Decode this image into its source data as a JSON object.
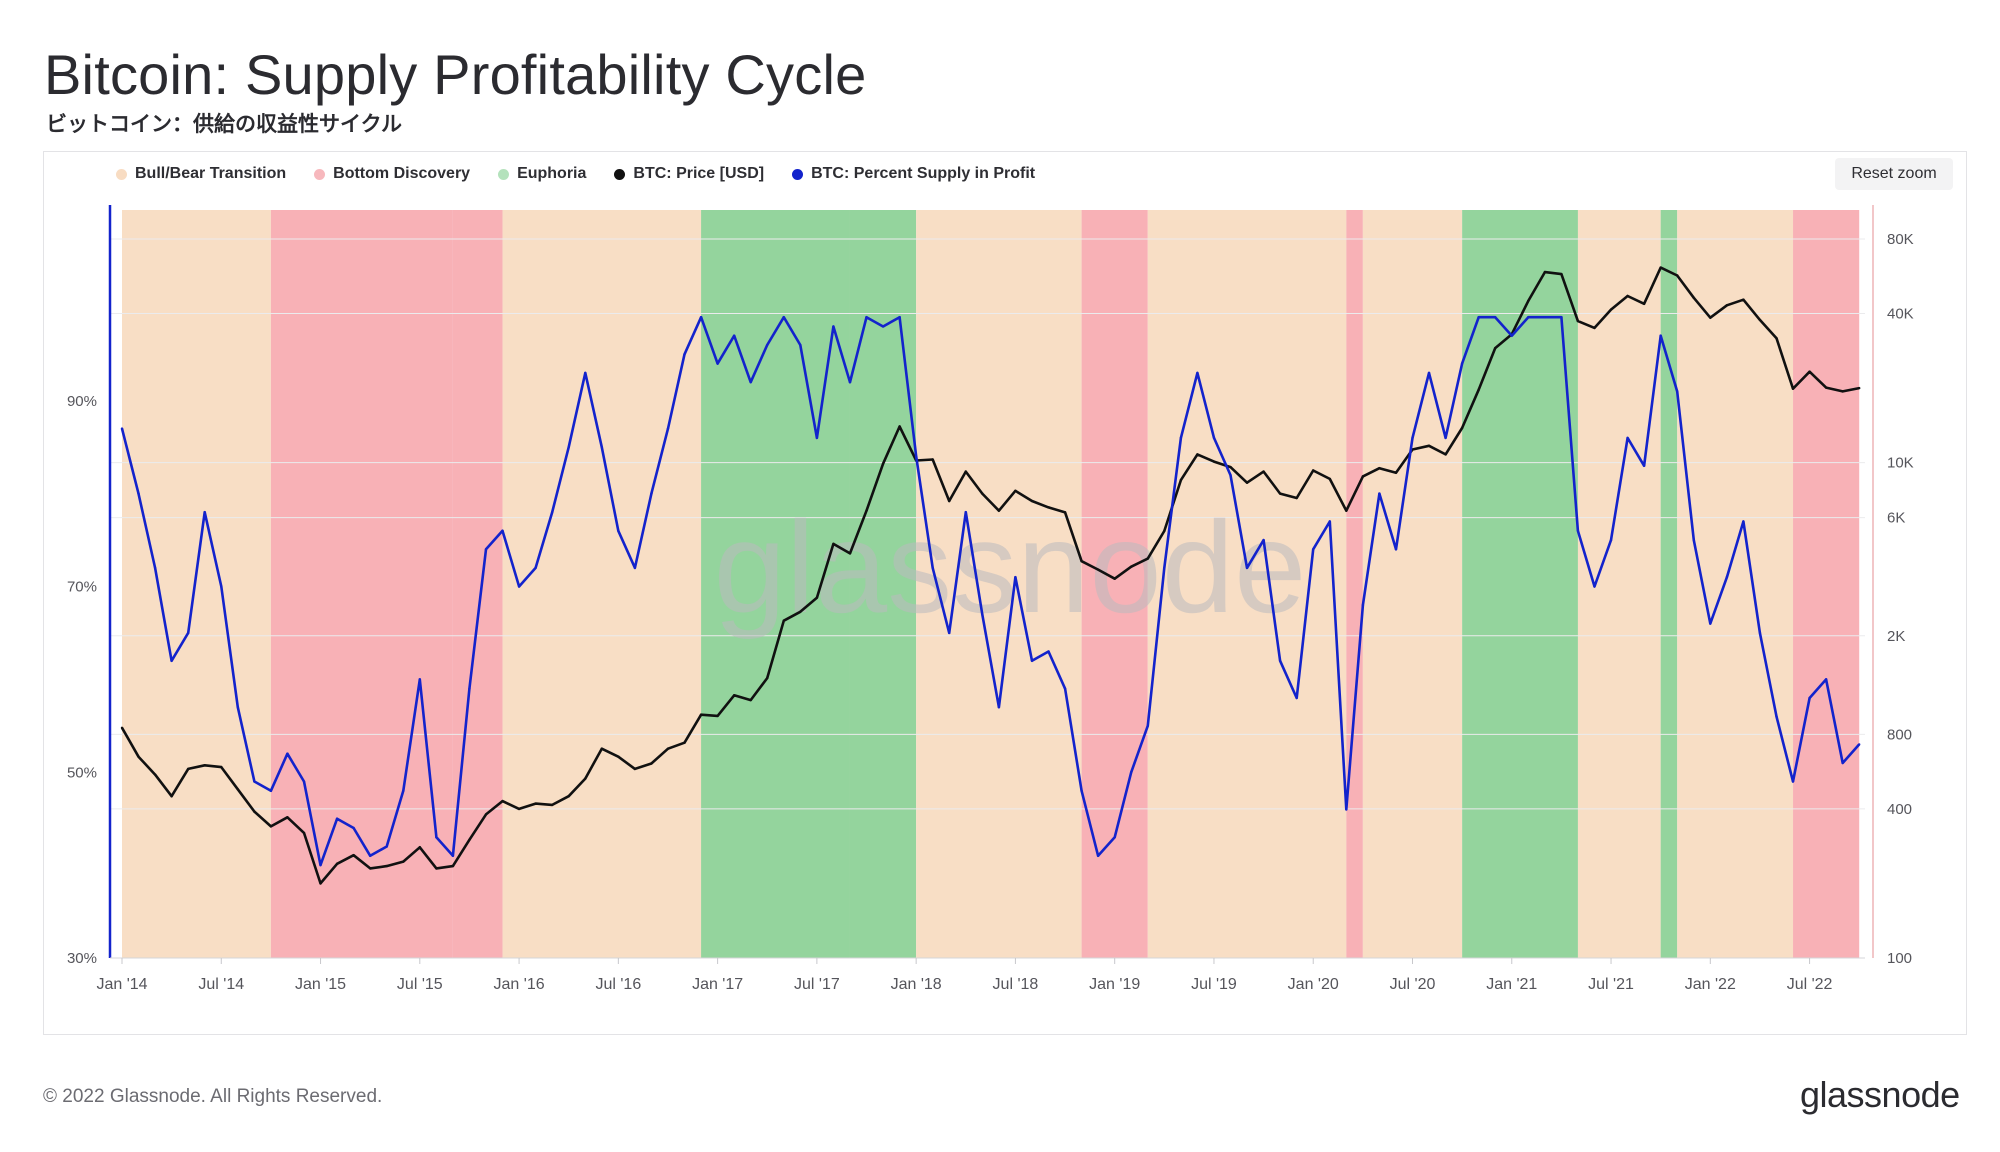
{
  "header": {
    "title": "Bitcoin: Supply Profitability Cycle",
    "subtitle": "ビットコイン：供給の収益性サイクル"
  },
  "legend": [
    {
      "label": "Bull/Bear Transition",
      "color": "#f8dcc2"
    },
    {
      "label": "Bottom Discovery",
      "color": "#f7b8bd"
    },
    {
      "label": "Euphoria",
      "color": "#b4e2bc"
    },
    {
      "label": "BTC: Price [USD]",
      "color": "#111111"
    },
    {
      "label": "BTC: Percent Supply in Profit",
      "color": "#1323cc"
    }
  ],
  "reset_zoom_label": "Reset zoom",
  "watermark": "glassnode",
  "footer": {
    "copyright": "© 2022 Glassnode. All Rights Reserved.",
    "logo": "glassnode"
  },
  "colors": {
    "transition": "#f8dcc2",
    "bottom": "#f7a9ae",
    "euphoria": "#88cf92",
    "price": "#111111",
    "profit": "#1323cc",
    "grid": "#ebebed",
    "axis_text": "#55555b"
  },
  "chart_data": {
    "type": "line",
    "x_range": [
      "2014-01",
      "2022-10"
    ],
    "x_tick_labels": [
      "Jan '14",
      "Jul '14",
      "Jan '15",
      "Jul '15",
      "Jan '16",
      "Jul '16",
      "Jan '17",
      "Jul '17",
      "Jan '18",
      "Jul '18",
      "Jan '19",
      "Jul '19",
      "Jan '20",
      "Jul '20",
      "Jan '21",
      "Jul '21",
      "Jan '22",
      "Jul '22"
    ],
    "y_left": {
      "label": "",
      "range": [
        30,
        110
      ],
      "ticks": [
        30,
        50,
        70,
        90
      ],
      "tick_labels": [
        "30%",
        "50%",
        "70%",
        "90%"
      ]
    },
    "y_right": {
      "label": "",
      "scale": "log",
      "range": [
        100,
        100000
      ],
      "ticks": [
        100,
        400,
        800,
        2000,
        6000,
        10000,
        40000,
        80000
      ],
      "tick_labels": [
        "100",
        "400",
        "800",
        "2K",
        "6K",
        "10K",
        "40K",
        "80K"
      ]
    },
    "regimes": [
      {
        "start": "2014-01",
        "end": "2014-10",
        "type": "transition"
      },
      {
        "start": "2014-10",
        "end": "2015-09",
        "type": "bottom"
      },
      {
        "start": "2015-09",
        "end": "2015-12",
        "type": "bottom"
      },
      {
        "start": "2015-12",
        "end": "2016-12",
        "type": "transition"
      },
      {
        "start": "2016-12",
        "end": "2017-09",
        "type": "euphoria"
      },
      {
        "start": "2017-09",
        "end": "2018-01",
        "type": "euphoria"
      },
      {
        "start": "2018-01",
        "end": "2018-11",
        "type": "transition"
      },
      {
        "start": "2018-11",
        "end": "2019-03",
        "type": "bottom"
      },
      {
        "start": "2019-03",
        "end": "2020-03",
        "type": "transition"
      },
      {
        "start": "2020-03",
        "end": "2020-04",
        "type": "bottom"
      },
      {
        "start": "2020-04",
        "end": "2020-10",
        "type": "transition"
      },
      {
        "start": "2020-10",
        "end": "2021-05",
        "type": "euphoria"
      },
      {
        "start": "2021-05",
        "end": "2021-10",
        "type": "transition"
      },
      {
        "start": "2021-10",
        "end": "2021-11",
        "type": "euphoria"
      },
      {
        "start": "2021-11",
        "end": "2022-06",
        "type": "transition"
      },
      {
        "start": "2022-06",
        "end": "2022-10",
        "type": "bottom"
      }
    ],
    "series": [
      {
        "name": "BTC: Price [USD]",
        "axis": "right",
        "points": [
          [
            "2014-01",
            850
          ],
          [
            "2014-02",
            650
          ],
          [
            "2014-03",
            550
          ],
          [
            "2014-04",
            450
          ],
          [
            "2014-05",
            580
          ],
          [
            "2014-06",
            600
          ],
          [
            "2014-07",
            590
          ],
          [
            "2014-08",
            480
          ],
          [
            "2014-09",
            390
          ],
          [
            "2014-10",
            340
          ],
          [
            "2014-11",
            370
          ],
          [
            "2014-12",
            320
          ],
          [
            "2015-01",
            200
          ],
          [
            "2015-02",
            240
          ],
          [
            "2015-03",
            260
          ],
          [
            "2015-04",
            230
          ],
          [
            "2015-05",
            235
          ],
          [
            "2015-06",
            245
          ],
          [
            "2015-07",
            280
          ],
          [
            "2015-08",
            230
          ],
          [
            "2015-09",
            235
          ],
          [
            "2015-10",
            300
          ],
          [
            "2015-11",
            380
          ],
          [
            "2015-12",
            430
          ],
          [
            "2016-01",
            400
          ],
          [
            "2016-02",
            420
          ],
          [
            "2016-03",
            415
          ],
          [
            "2016-04",
            450
          ],
          [
            "2016-05",
            530
          ],
          [
            "2016-06",
            700
          ],
          [
            "2016-07",
            650
          ],
          [
            "2016-08",
            580
          ],
          [
            "2016-09",
            610
          ],
          [
            "2016-10",
            700
          ],
          [
            "2016-11",
            740
          ],
          [
            "2016-12",
            960
          ],
          [
            "2017-01",
            950
          ],
          [
            "2017-02",
            1150
          ],
          [
            "2017-03",
            1100
          ],
          [
            "2017-04",
            1350
          ],
          [
            "2017-05",
            2300
          ],
          [
            "2017-06",
            2500
          ],
          [
            "2017-07",
            2850
          ],
          [
            "2017-08",
            4700
          ],
          [
            "2017-09",
            4300
          ],
          [
            "2017-10",
            6400
          ],
          [
            "2017-11",
            9900
          ],
          [
            "2017-12",
            14000
          ],
          [
            "2018-01",
            10200
          ],
          [
            "2018-02",
            10300
          ],
          [
            "2018-03",
            7000
          ],
          [
            "2018-04",
            9200
          ],
          [
            "2018-05",
            7500
          ],
          [
            "2018-06",
            6400
          ],
          [
            "2018-07",
            7700
          ],
          [
            "2018-08",
            7000
          ],
          [
            "2018-09",
            6600
          ],
          [
            "2018-10",
            6300
          ],
          [
            "2018-11",
            4000
          ],
          [
            "2018-12",
            3700
          ],
          [
            "2019-01",
            3400
          ],
          [
            "2019-02",
            3800
          ],
          [
            "2019-03",
            4100
          ],
          [
            "2019-04",
            5300
          ],
          [
            "2019-05",
            8500
          ],
          [
            "2019-06",
            10800
          ],
          [
            "2019-07",
            10100
          ],
          [
            "2019-08",
            9600
          ],
          [
            "2019-09",
            8300
          ],
          [
            "2019-10",
            9200
          ],
          [
            "2019-11",
            7500
          ],
          [
            "2019-12",
            7200
          ],
          [
            "2020-01",
            9300
          ],
          [
            "2020-02",
            8600
          ],
          [
            "2020-03",
            6400
          ],
          [
            "2020-04",
            8800
          ],
          [
            "2020-05",
            9500
          ],
          [
            "2020-06",
            9100
          ],
          [
            "2020-07",
            11300
          ],
          [
            "2020-08",
            11700
          ],
          [
            "2020-09",
            10800
          ],
          [
            "2020-10",
            13800
          ],
          [
            "2020-11",
            19700
          ],
          [
            "2020-12",
            29000
          ],
          [
            "2021-01",
            33000
          ],
          [
            "2021-02",
            45000
          ],
          [
            "2021-03",
            58800
          ],
          [
            "2021-04",
            57700
          ],
          [
            "2021-05",
            37300
          ],
          [
            "2021-06",
            35000
          ],
          [
            "2021-07",
            41500
          ],
          [
            "2021-08",
            47100
          ],
          [
            "2021-09",
            43800
          ],
          [
            "2021-10",
            61300
          ],
          [
            "2021-11",
            57000
          ],
          [
            "2021-12",
            46300
          ],
          [
            "2022-01",
            38500
          ],
          [
            "2022-02",
            43200
          ],
          [
            "2022-03",
            45500
          ],
          [
            "2022-04",
            37700
          ],
          [
            "2022-05",
            31800
          ],
          [
            "2022-06",
            19900
          ],
          [
            "2022-07",
            23300
          ],
          [
            "2022-08",
            20100
          ],
          [
            "2022-09",
            19400
          ],
          [
            "2022-10",
            20000
          ]
        ]
      },
      {
        "name": "BTC: Percent Supply in Profit",
        "axis": "left",
        "points": [
          [
            "2014-01",
            87
          ],
          [
            "2014-02",
            80
          ],
          [
            "2014-03",
            72
          ],
          [
            "2014-04",
            62
          ],
          [
            "2014-05",
            65
          ],
          [
            "2014-06",
            78
          ],
          [
            "2014-07",
            70
          ],
          [
            "2014-08",
            57
          ],
          [
            "2014-09",
            49
          ],
          [
            "2014-10",
            48
          ],
          [
            "2014-11",
            52
          ],
          [
            "2014-12",
            49
          ],
          [
            "2015-01",
            40
          ],
          [
            "2015-02",
            45
          ],
          [
            "2015-03",
            44
          ],
          [
            "2015-04",
            41
          ],
          [
            "2015-05",
            42
          ],
          [
            "2015-06",
            48
          ],
          [
            "2015-07",
            60
          ],
          [
            "2015-08",
            43
          ],
          [
            "2015-09",
            41
          ],
          [
            "2015-10",
            59
          ],
          [
            "2015-11",
            74
          ],
          [
            "2015-12",
            76
          ],
          [
            "2016-01",
            70
          ],
          [
            "2016-02",
            72
          ],
          [
            "2016-03",
            78
          ],
          [
            "2016-04",
            85
          ],
          [
            "2016-05",
            93
          ],
          [
            "2016-06",
            85
          ],
          [
            "2016-07",
            76
          ],
          [
            "2016-08",
            72
          ],
          [
            "2016-09",
            80
          ],
          [
            "2016-10",
            87
          ],
          [
            "2016-11",
            95
          ],
          [
            "2016-12",
            99
          ],
          [
            "2017-01",
            94
          ],
          [
            "2017-02",
            97
          ],
          [
            "2017-03",
            92
          ],
          [
            "2017-04",
            96
          ],
          [
            "2017-05",
            99
          ],
          [
            "2017-06",
            96
          ],
          [
            "2017-07",
            86
          ],
          [
            "2017-08",
            98
          ],
          [
            "2017-09",
            92
          ],
          [
            "2017-10",
            99
          ],
          [
            "2017-11",
            98
          ],
          [
            "2017-12",
            99
          ],
          [
            "2018-01",
            84
          ],
          [
            "2018-02",
            72
          ],
          [
            "2018-03",
            65
          ],
          [
            "2018-04",
            78
          ],
          [
            "2018-05",
            67
          ],
          [
            "2018-06",
            57
          ],
          [
            "2018-07",
            71
          ],
          [
            "2018-08",
            62
          ],
          [
            "2018-09",
            63
          ],
          [
            "2018-10",
            59
          ],
          [
            "2018-11",
            48
          ],
          [
            "2018-12",
            41
          ],
          [
            "2019-01",
            43
          ],
          [
            "2019-02",
            50
          ],
          [
            "2019-03",
            55
          ],
          [
            "2019-04",
            72
          ],
          [
            "2019-05",
            86
          ],
          [
            "2019-06",
            93
          ],
          [
            "2019-07",
            86
          ],
          [
            "2019-08",
            82
          ],
          [
            "2019-09",
            72
          ],
          [
            "2019-10",
            75
          ],
          [
            "2019-11",
            62
          ],
          [
            "2019-12",
            58
          ],
          [
            "2020-01",
            74
          ],
          [
            "2020-02",
            77
          ],
          [
            "2020-03",
            46
          ],
          [
            "2020-04",
            68
          ],
          [
            "2020-05",
            80
          ],
          [
            "2020-06",
            74
          ],
          [
            "2020-07",
            86
          ],
          [
            "2020-08",
            93
          ],
          [
            "2020-09",
            86
          ],
          [
            "2020-10",
            94
          ],
          [
            "2020-11",
            99
          ],
          [
            "2020-12",
            99
          ],
          [
            "2021-01",
            97
          ],
          [
            "2021-02",
            99
          ],
          [
            "2021-03",
            99
          ],
          [
            "2021-04",
            99
          ],
          [
            "2021-05",
            76
          ],
          [
            "2021-06",
            70
          ],
          [
            "2021-07",
            75
          ],
          [
            "2021-08",
            86
          ],
          [
            "2021-09",
            83
          ],
          [
            "2021-10",
            97
          ],
          [
            "2021-11",
            91
          ],
          [
            "2021-12",
            75
          ],
          [
            "2022-01",
            66
          ],
          [
            "2022-02",
            71
          ],
          [
            "2022-03",
            77
          ],
          [
            "2022-04",
            65
          ],
          [
            "2022-05",
            56
          ],
          [
            "2022-06",
            49
          ],
          [
            "2022-07",
            58
          ],
          [
            "2022-08",
            60
          ],
          [
            "2022-09",
            51
          ],
          [
            "2022-10",
            53
          ]
        ]
      }
    ]
  }
}
